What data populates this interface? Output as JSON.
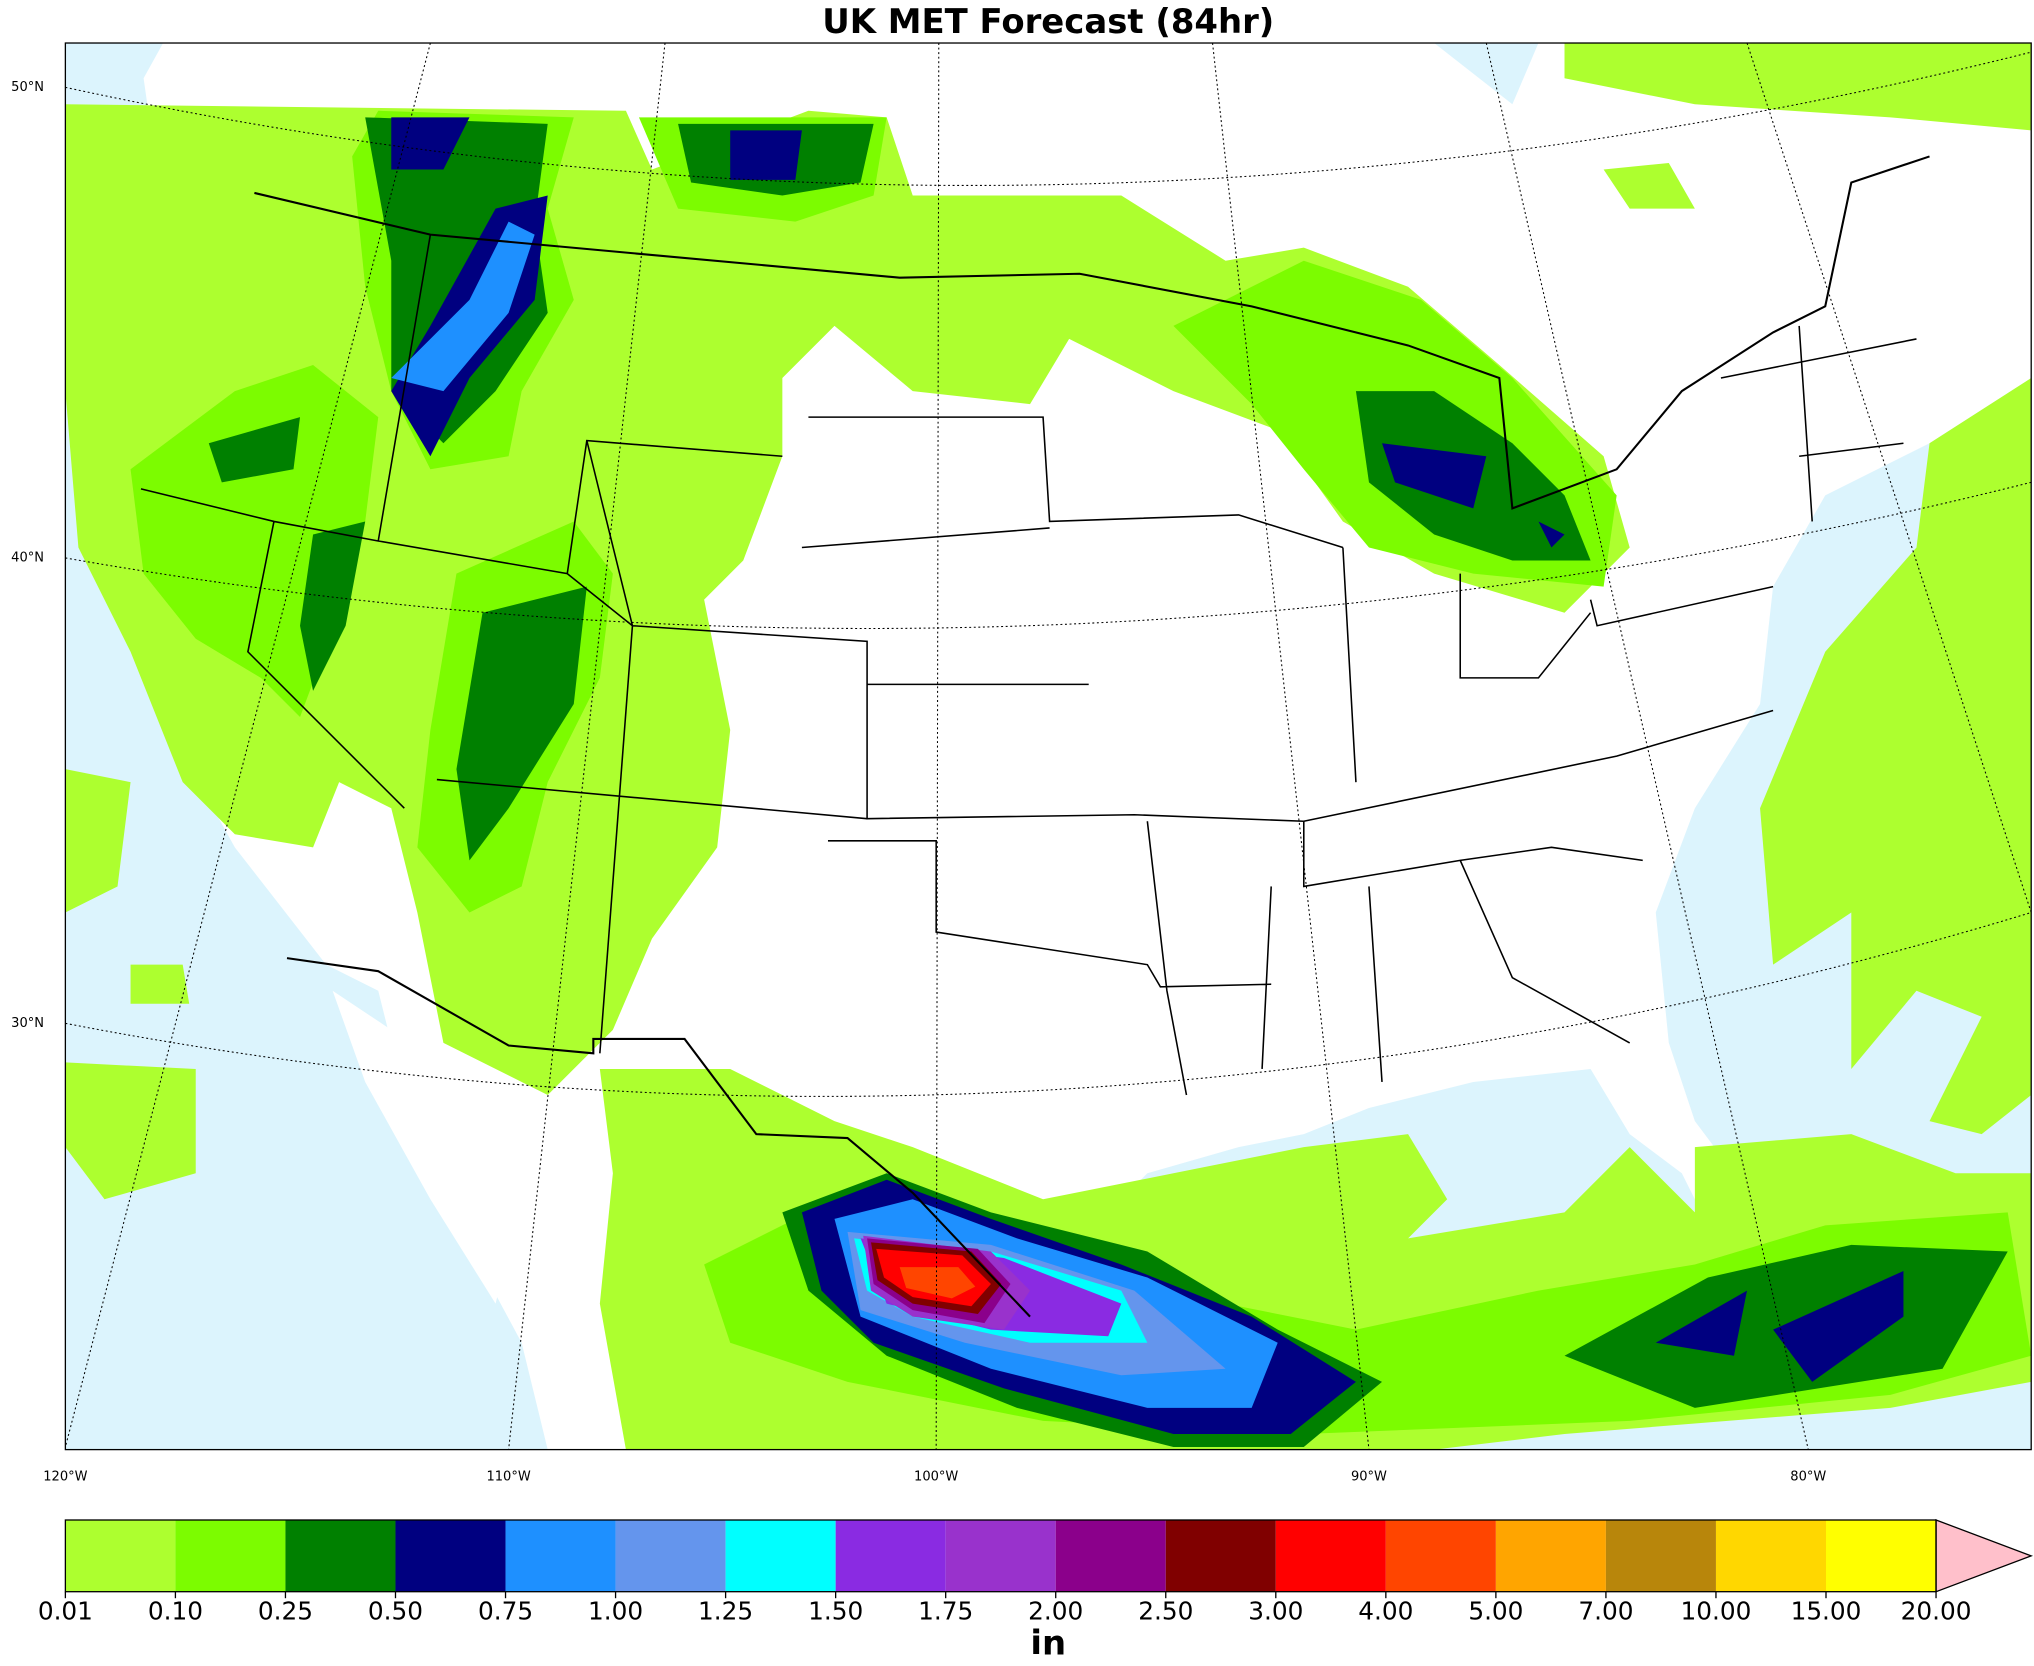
{
  "map": {
    "title": "UK MET Forecast (84hr)",
    "lat_labels": [
      "50°N",
      "40°N",
      "30°N"
    ],
    "lon_labels": [
      "120°W",
      "110°W",
      "100°W",
      "90°W",
      "80°W"
    ],
    "water_color": "#dcf4fd",
    "colorbar": {
      "levels": [
        {
          "value": 0.01,
          "label": "0.01"
        },
        {
          "value": 0.1,
          "label": "0.10"
        },
        {
          "value": 0.25,
          "label": "0.25"
        },
        {
          "value": 0.5,
          "label": "0.50"
        },
        {
          "value": 0.75,
          "label": "0.75"
        },
        {
          "value": 1,
          "label": "1.00"
        },
        {
          "value": 1.25,
          "label": "1.25"
        },
        {
          "value": 1.5,
          "label": "1.50"
        },
        {
          "value": 1.75,
          "label": "1.75"
        },
        {
          "value": 2,
          "label": "2.00"
        },
        {
          "value": 2.5,
          "label": "2.50"
        },
        {
          "value": 3,
          "label": "3.00"
        },
        {
          "value": 4,
          "label": "4.00"
        },
        {
          "value": 5,
          "label": "5.00"
        },
        {
          "value": 7,
          "label": "7.00"
        },
        {
          "value": 10,
          "label": "10.00"
        },
        {
          "value": 15,
          "label": "15.00"
        },
        {
          "value": 20,
          "label": "20.00"
        }
      ],
      "colors": [
        "#adff2f",
        "#7cfc00",
        "#008000",
        "#000080",
        "#1e90ff",
        "#6495ed",
        "#00ffff",
        "#8a2be2",
        "#9932cc",
        "#8b008b",
        "#800000",
        "#ff0000",
        "#ff4500",
        "#ffa500",
        "#b8860b",
        "#ffd700",
        "#ffff00"
      ],
      "extend_color": "#ffc0cb",
      "label": "in"
    }
  }
}
